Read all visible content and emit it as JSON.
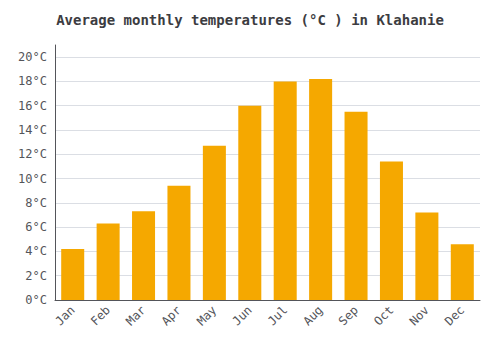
{
  "chart_data": {
    "type": "bar",
    "title": "Average monthly temperatures (°C ) in Klahanie",
    "categories": [
      "Jan",
      "Feb",
      "Mar",
      "Apr",
      "May",
      "Jun",
      "Jul",
      "Aug",
      "Sep",
      "Oct",
      "Nov",
      "Dec"
    ],
    "values": [
      4.2,
      6.3,
      7.3,
      9.4,
      12.7,
      16.0,
      18.0,
      18.2,
      15.5,
      11.4,
      7.2,
      4.6
    ],
    "color": "#F5A800",
    "ylim": [
      0,
      21
    ],
    "yticks": [
      {
        "value": 0,
        "label": "0°C"
      },
      {
        "value": 2,
        "label": "2°C"
      },
      {
        "value": 4,
        "label": "4°C"
      },
      {
        "value": 6,
        "label": "6°C"
      },
      {
        "value": 8,
        "label": "8°C"
      },
      {
        "value": 10,
        "label": "10°C"
      },
      {
        "value": 12,
        "label": "12°C"
      },
      {
        "value": 14,
        "label": "14°C"
      },
      {
        "value": 16,
        "label": "16°C"
      },
      {
        "value": 18,
        "label": "18°C"
      },
      {
        "value": 20,
        "label": "20°C"
      }
    ],
    "grid": true
  }
}
